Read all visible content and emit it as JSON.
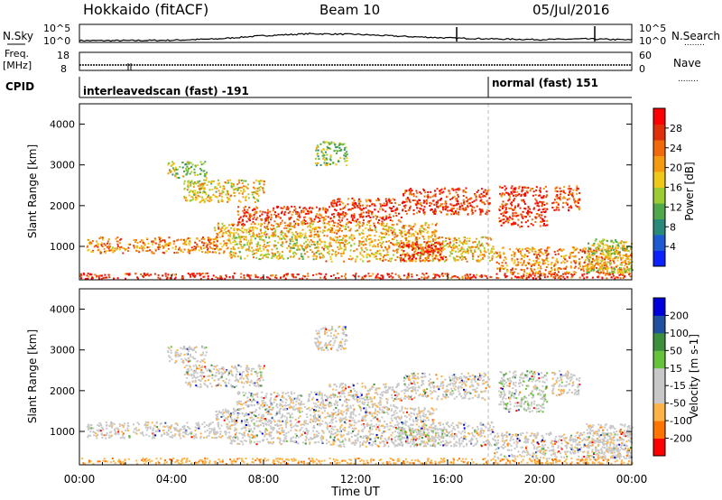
{
  "header": {
    "station": "Hokkaido (fitACF)",
    "beam": "Beam 10",
    "date": "05/Jul/2016"
  },
  "strip_labels": {
    "nsky": "N.Sky",
    "nsearch": "N.Search",
    "freq_line1": "Freq.",
    "freq_line2": "[MHz]",
    "nave": "Nave",
    "cpid": "CPID",
    "dots": "........"
  },
  "cpid_segments": [
    {
      "label": "interleavedscan (fast) -191",
      "start_hour": 0
    },
    {
      "label": "normal (fast) 151",
      "start_hour": 18
    }
  ],
  "colors": {
    "power": [
      "#0b22ff",
      "#1c5bd2",
      "#2a8a79",
      "#4fa84a",
      "#9ccc32",
      "#f0c81a",
      "#f59b10",
      "#f06a0a",
      "#e0300a",
      "#ff0000"
    ],
    "velocity": [
      "#ff0000",
      "#ff7300",
      "#ffb347",
      "#c8c8c8",
      "#c8c8c8",
      "#66c23a",
      "#3c8f3c",
      "#2050a0",
      "#0000dd"
    ]
  },
  "chart_data": [
    {
      "type": "line",
      "name": "N.Sky / N.Search",
      "y_left_ticks": [
        "10^5",
        "10^0"
      ],
      "y_right_ticks": [
        "10^5",
        "10^0"
      ],
      "x": [
        0,
        2,
        4,
        6,
        8,
        10,
        12,
        14,
        16,
        18,
        20,
        22,
        24
      ],
      "values": [
        0.3,
        0.3,
        0.4,
        0.8,
        1.8,
        2.4,
        2.2,
        1.6,
        1.1,
        0.8,
        0.6,
        0.8,
        0.5
      ]
    },
    {
      "type": "line",
      "name": "Freq / Nave",
      "y_left_ticks": [
        "18",
        "8"
      ],
      "y_right_ticks": [
        "60",
        "0"
      ],
      "x": [
        0,
        24
      ],
      "values": [
        11,
        11
      ]
    },
    {
      "type": "heatmap",
      "title": "Power",
      "ylabel": "Slant Range [km]",
      "colorbar_label": "Power [dB]",
      "colorbar_ticks": [
        "28",
        "24",
        "20",
        "16",
        "12",
        "8",
        "4"
      ],
      "ylim": [
        180,
        4500
      ],
      "y_ticks": [
        "4000",
        "3000",
        "2000",
        "1000"
      ],
      "y_tick_values": [
        4000,
        3000,
        2000,
        1000
      ],
      "bands": [
        {
          "t0": 0.0,
          "t1": 24.0,
          "r0": 220,
          "r1": 360,
          "level": 0.92
        },
        {
          "t0": 0.3,
          "t1": 6.5,
          "r0": 850,
          "r1": 1250,
          "level": 0.72
        },
        {
          "t0": 6.5,
          "t1": 10.5,
          "r0": 700,
          "r1": 1300,
          "level": 0.55
        },
        {
          "t0": 10.5,
          "t1": 18.0,
          "r0": 650,
          "r1": 1250,
          "level": 0.62
        },
        {
          "t0": 13.8,
          "t1": 15.8,
          "r0": 650,
          "r1": 1150,
          "level": 0.88
        },
        {
          "t0": 6.8,
          "t1": 10.8,
          "r0": 1550,
          "r1": 2000,
          "level": 0.86
        },
        {
          "t0": 10.8,
          "t1": 14.0,
          "r0": 1600,
          "r1": 2200,
          "level": 0.88
        },
        {
          "t0": 14.0,
          "t1": 17.8,
          "r0": 1800,
          "r1": 2450,
          "level": 0.9
        },
        {
          "t0": 18.2,
          "t1": 20.3,
          "r0": 1500,
          "r1": 2500,
          "level": 0.9
        },
        {
          "t0": 20.5,
          "t1": 21.7,
          "r0": 1900,
          "r1": 2500,
          "level": 0.86
        },
        {
          "t0": 18.0,
          "t1": 24.0,
          "r0": 350,
          "r1": 1000,
          "level": 0.72
        },
        {
          "t0": 4.5,
          "t1": 8.0,
          "r0": 2100,
          "r1": 2650,
          "level": 0.55
        },
        {
          "t0": 3.8,
          "t1": 5.5,
          "r0": 2700,
          "r1": 3100,
          "level": 0.45
        },
        {
          "t0": 5.8,
          "t1": 15.5,
          "r0": 1250,
          "r1": 1600,
          "level": 0.65
        },
        {
          "t0": 10.2,
          "t1": 11.6,
          "r0": 3000,
          "r1": 3600,
          "level": 0.4
        },
        {
          "t0": 22.0,
          "t1": 24.0,
          "r0": 350,
          "r1": 1200,
          "level": 0.5
        }
      ]
    },
    {
      "type": "heatmap",
      "title": "Velocity",
      "ylabel": "Slant Range [km]",
      "xlabel": "Time UT",
      "colorbar_label": "Velocity [m s-1]",
      "colorbar_ticks": [
        "200",
        "100",
        "50",
        "15",
        "-15",
        "-50",
        "-100",
        "-200"
      ],
      "ylim": [
        180,
        4500
      ],
      "y_ticks": [
        "4000",
        "3000",
        "2000",
        "1000"
      ],
      "y_tick_values": [
        4000,
        3000,
        2000,
        1000
      ],
      "x_ticks": [
        "00:00",
        "04:00",
        "08:00",
        "12:00",
        "16:00",
        "20:00",
        "00:00"
      ],
      "x_tick_values": [
        0,
        4,
        8,
        12,
        16,
        20,
        24
      ],
      "xlim": [
        0,
        24
      ],
      "bands": [
        {
          "t0": 0.0,
          "t1": 24.0,
          "r0": 220,
          "r1": 360,
          "level": 0.2
        },
        {
          "t0": 0.3,
          "t1": 6.5,
          "r0": 850,
          "r1": 1250,
          "level": 0.45
        },
        {
          "t0": 6.5,
          "t1": 10.5,
          "r0": 700,
          "r1": 1300,
          "level": 0.45
        },
        {
          "t0": 10.5,
          "t1": 18.0,
          "r0": 650,
          "r1": 1250,
          "level": 0.5
        },
        {
          "t0": 13.8,
          "t1": 15.8,
          "r0": 650,
          "r1": 1150,
          "level": 0.6
        },
        {
          "t0": 6.8,
          "t1": 10.8,
          "r0": 1550,
          "r1": 2000,
          "level": 0.45
        },
        {
          "t0": 10.8,
          "t1": 14.0,
          "r0": 1600,
          "r1": 2200,
          "level": 0.45
        },
        {
          "t0": 14.0,
          "t1": 17.8,
          "r0": 1800,
          "r1": 2450,
          "level": 0.45
        },
        {
          "t0": 18.2,
          "t1": 20.3,
          "r0": 1500,
          "r1": 2500,
          "level": 0.62
        },
        {
          "t0": 20.5,
          "t1": 21.7,
          "r0": 1900,
          "r1": 2500,
          "level": 0.45
        },
        {
          "t0": 18.0,
          "t1": 24.0,
          "r0": 350,
          "r1": 1000,
          "level": 0.45
        },
        {
          "t0": 4.5,
          "t1": 8.0,
          "r0": 2100,
          "r1": 2650,
          "level": 0.45
        },
        {
          "t0": 3.8,
          "t1": 5.5,
          "r0": 2700,
          "r1": 3100,
          "level": 0.45
        },
        {
          "t0": 5.8,
          "t1": 15.5,
          "r0": 1250,
          "r1": 1600,
          "level": 0.45
        },
        {
          "t0": 10.2,
          "t1": 11.6,
          "r0": 3000,
          "r1": 3600,
          "level": 0.45
        },
        {
          "t0": 22.0,
          "t1": 24.0,
          "r0": 350,
          "r1": 1200,
          "level": 0.45
        }
      ]
    }
  ]
}
